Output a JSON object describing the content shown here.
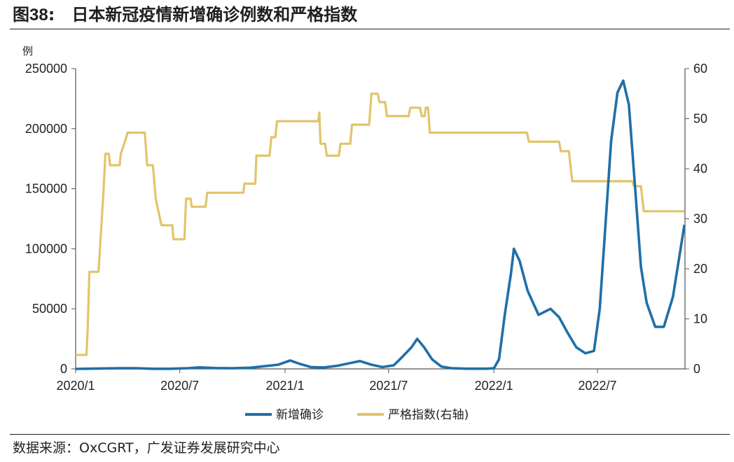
{
  "title": {
    "prefix": "图",
    "number": "38",
    "sep": ":",
    "text": "日本新冠疫情新增确诊例数和严格指数"
  },
  "source": "数据来源：OxCGRT，广发证券发展研究中心",
  "colors": {
    "cases": "#1f6fa8",
    "index": "#e2c46a",
    "axis": "#555555"
  },
  "chart_data": {
    "type": "line",
    "y_unit_label": "例",
    "x_ticks": [
      "2020/1",
      "2020/7",
      "2021/1",
      "2021/7",
      "2022/1",
      "2022/7"
    ],
    "y_left": {
      "range": [
        0,
        250000
      ],
      "ticks": [
        "250000",
        "200000",
        "150000",
        "100000",
        "50000",
        "0"
      ]
    },
    "y_right": {
      "range": [
        0,
        60
      ],
      "ticks": [
        "60",
        "50",
        "40",
        "30",
        "20",
        "10",
        "0"
      ]
    },
    "grid": false,
    "legend_position": "bottom-center",
    "series": [
      {
        "name": "新增确诊",
        "axis": "left",
        "color": "#1f6fa8",
        "points": [
          [
            "2020-01-01",
            0
          ],
          [
            "2020-03-15",
            500
          ],
          [
            "2020-04-15",
            600
          ],
          [
            "2020-05-15",
            100
          ],
          [
            "2020-06-15",
            100
          ],
          [
            "2020-07-15",
            600
          ],
          [
            "2020-08-05",
            1300
          ],
          [
            "2020-09-01",
            700
          ],
          [
            "2020-10-01",
            500
          ],
          [
            "2020-11-01",
            1000
          ],
          [
            "2020-12-01",
            2500
          ],
          [
            "2020-12-20",
            3500
          ],
          [
            "2021-01-10",
            7000
          ],
          [
            "2021-01-25",
            4500
          ],
          [
            "2021-02-15",
            1500
          ],
          [
            "2021-03-10",
            1200
          ],
          [
            "2021-04-01",
            2500
          ],
          [
            "2021-05-01",
            5500
          ],
          [
            "2021-05-12",
            6500
          ],
          [
            "2021-06-01",
            3500
          ],
          [
            "2021-06-20",
            1500
          ],
          [
            "2021-07-10",
            3000
          ],
          [
            "2021-07-25",
            10000
          ],
          [
            "2021-08-10",
            18000
          ],
          [
            "2021-08-20",
            25000
          ],
          [
            "2021-09-01",
            18000
          ],
          [
            "2021-09-15",
            8000
          ],
          [
            "2021-10-01",
            2000
          ],
          [
            "2021-10-20",
            500
          ],
          [
            "2021-11-15",
            150
          ],
          [
            "2021-12-20",
            200
          ],
          [
            "2022-01-01",
            500
          ],
          [
            "2022-01-10",
            8000
          ],
          [
            "2022-01-20",
            45000
          ],
          [
            "2022-01-31",
            80000
          ],
          [
            "2022-02-05",
            100000
          ],
          [
            "2022-02-15",
            90000
          ],
          [
            "2022-03-01",
            65000
          ],
          [
            "2022-03-20",
            45000
          ],
          [
            "2022-04-10",
            50000
          ],
          [
            "2022-04-25",
            43000
          ],
          [
            "2022-05-10",
            30000
          ],
          [
            "2022-05-25",
            18000
          ],
          [
            "2022-06-10",
            13000
          ],
          [
            "2022-06-25",
            15000
          ],
          [
            "2022-07-05",
            50000
          ],
          [
            "2022-07-15",
            120000
          ],
          [
            "2022-07-25",
            190000
          ],
          [
            "2022-08-05",
            230000
          ],
          [
            "2022-08-15",
            240000
          ],
          [
            "2022-08-25",
            220000
          ],
          [
            "2022-09-05",
            150000
          ],
          [
            "2022-09-15",
            85000
          ],
          [
            "2022-09-25",
            55000
          ],
          [
            "2022-10-10",
            35000
          ],
          [
            "2022-10-25",
            35000
          ],
          [
            "2022-11-10",
            60000
          ],
          [
            "2022-11-20",
            90000
          ],
          [
            "2022-11-30",
            120000
          ]
        ]
      },
      {
        "name": "严格指数(右轴)",
        "axis": "right",
        "color": "#e2c46a",
        "points": [
          [
            "2020-01-01",
            2.8
          ],
          [
            "2020-01-20",
            2.8
          ],
          [
            "2020-01-22",
            8
          ],
          [
            "2020-01-25",
            19.4
          ],
          [
            "2020-02-10",
            19.4
          ],
          [
            "2020-02-13",
            25
          ],
          [
            "2020-02-18",
            34
          ],
          [
            "2020-02-22",
            43
          ],
          [
            "2020-02-28",
            43
          ],
          [
            "2020-03-01",
            40.7
          ],
          [
            "2020-03-18",
            40.7
          ],
          [
            "2020-03-20",
            43
          ],
          [
            "2020-03-26",
            45
          ],
          [
            "2020-04-01",
            47.2
          ],
          [
            "2020-05-01",
            47.2
          ],
          [
            "2020-05-05",
            40.7
          ],
          [
            "2020-05-15",
            40.7
          ],
          [
            "2020-05-20",
            34
          ],
          [
            "2020-05-30",
            28.7
          ],
          [
            "2020-06-18",
            28.7
          ],
          [
            "2020-06-20",
            25.9
          ],
          [
            "2020-07-09",
            25.9
          ],
          [
            "2020-07-12",
            34
          ],
          [
            "2020-07-20",
            34
          ],
          [
            "2020-07-22",
            32.4
          ],
          [
            "2020-08-15",
            32.4
          ],
          [
            "2020-08-18",
            35.2
          ],
          [
            "2020-10-20",
            35.2
          ],
          [
            "2020-10-22",
            37
          ],
          [
            "2020-11-10",
            37
          ],
          [
            "2020-11-12",
            42.6
          ],
          [
            "2020-12-05",
            42.6
          ],
          [
            "2020-12-08",
            46.3
          ],
          [
            "2020-12-15",
            46.3
          ],
          [
            "2020-12-18",
            49.5
          ],
          [
            "2021-02-28",
            49.5
          ],
          [
            "2021-03-02",
            51.2
          ],
          [
            "2021-03-04",
            45
          ],
          [
            "2021-03-12",
            45
          ],
          [
            "2021-03-15",
            42.6
          ],
          [
            "2021-04-05",
            42.6
          ],
          [
            "2021-04-08",
            45
          ],
          [
            "2021-04-25",
            45
          ],
          [
            "2021-04-28",
            48.8
          ],
          [
            "2021-05-28",
            48.8
          ],
          [
            "2021-06-01",
            55
          ],
          [
            "2021-06-12",
            55
          ],
          [
            "2021-06-15",
            53.3
          ],
          [
            "2021-06-25",
            53.3
          ],
          [
            "2021-06-28",
            50.5
          ],
          [
            "2021-08-05",
            50.5
          ],
          [
            "2021-08-08",
            52.2
          ],
          [
            "2021-08-25",
            52.2
          ],
          [
            "2021-08-28",
            50.5
          ],
          [
            "2021-09-02",
            50.5
          ],
          [
            "2021-09-04",
            52.2
          ],
          [
            "2021-09-08",
            52.2
          ],
          [
            "2021-09-11",
            47.2
          ],
          [
            "2022-02-28",
            47.2
          ],
          [
            "2022-03-03",
            45.4
          ],
          [
            "2022-04-25",
            45.4
          ],
          [
            "2022-04-28",
            43.5
          ],
          [
            "2022-05-12",
            43.5
          ],
          [
            "2022-05-18",
            37.5
          ],
          [
            "2022-08-31",
            37.5
          ],
          [
            "2022-09-03",
            36.5
          ],
          [
            "2022-09-15",
            36.5
          ],
          [
            "2022-09-20",
            31.5
          ],
          [
            "2022-11-30",
            31.5
          ]
        ]
      }
    ]
  }
}
